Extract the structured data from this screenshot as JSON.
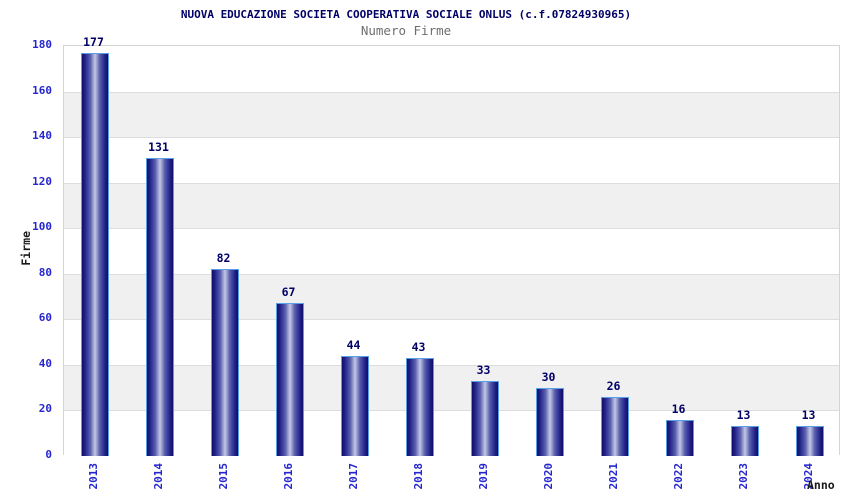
{
  "chart_data": {
    "type": "bar",
    "title": "NUOVA EDUCAZIONE SOCIETA COOPERATIVA SOCIALE ONLUS (c.f.07824930965)",
    "subtitle": "Numero Firme",
    "xlabel": "Anno",
    "ylabel": "Firme",
    "categories": [
      "2013",
      "2014",
      "2015",
      "2016",
      "2017",
      "2018",
      "2019",
      "2020",
      "2021",
      "2022",
      "2023",
      "2024"
    ],
    "values": [
      177,
      131,
      82,
      67,
      44,
      43,
      33,
      30,
      26,
      16,
      13,
      13
    ],
    "ylim": [
      0,
      180
    ],
    "ytick_step": 20,
    "yticks": [
      0,
      20,
      40,
      60,
      80,
      100,
      120,
      140,
      160,
      180
    ],
    "grid": "alternating-horizontal-bands",
    "legend_position": "none",
    "colors": {
      "title": "#000066",
      "subtitle": "#6e6e6e",
      "tick_label": "#2626cf",
      "value_label": "#000066",
      "axis_title": "#1a1a1a",
      "bar_gradient_dark": "#0f0f68",
      "bar_gradient_mid": "#5a5fae",
      "bar_gradient_light": "#c3c7e5",
      "bar_border": "#58a0e6",
      "band_gray": "#f0f0f0",
      "band_white": "#ffffff",
      "band_line": "#dddddd",
      "plot_border": "#d4d4d4",
      "background": "#ffffff"
    }
  }
}
